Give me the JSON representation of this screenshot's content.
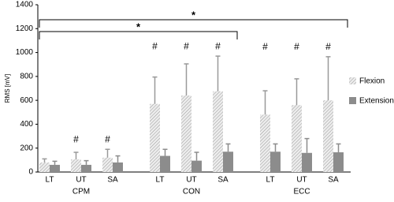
{
  "chart_data": {
    "type": "bar",
    "y_label": "RMS [mV]",
    "groups": [
      "CPM",
      "CON",
      "ECC"
    ],
    "categories": [
      "LT",
      "UT",
      "SA",
      "LT",
      "UT",
      "SA",
      "LT",
      "UT",
      "SA"
    ],
    "series": [
      {
        "name": "Flexion",
        "color": "#d4d4d4",
        "hatch": true,
        "values": [
          80,
          105,
          120,
          570,
          640,
          675,
          480,
          560,
          600
        ],
        "errors": [
          30,
          60,
          70,
          225,
          265,
          295,
          200,
          220,
          365
        ],
        "markers": [
          null,
          "#",
          "#",
          "#",
          "#",
          "#",
          "#",
          "#",
          "#"
        ]
      },
      {
        "name": "Extension",
        "color": "#8c8c8c",
        "hatch": false,
        "values": [
          60,
          60,
          80,
          135,
          95,
          170,
          170,
          160,
          165
        ],
        "errors": [
          30,
          35,
          55,
          55,
          70,
          65,
          65,
          120,
          70
        ]
      }
    ],
    "comparisons": [
      {
        "from": "CPM",
        "to": "CON",
        "label": "*"
      },
      {
        "from": "CPM",
        "to": "ECC",
        "label": "*"
      }
    ],
    "ylim": [
      0,
      1400
    ],
    "yticks": [
      0,
      200,
      400,
      600,
      800,
      1000,
      1200,
      1400
    ]
  }
}
